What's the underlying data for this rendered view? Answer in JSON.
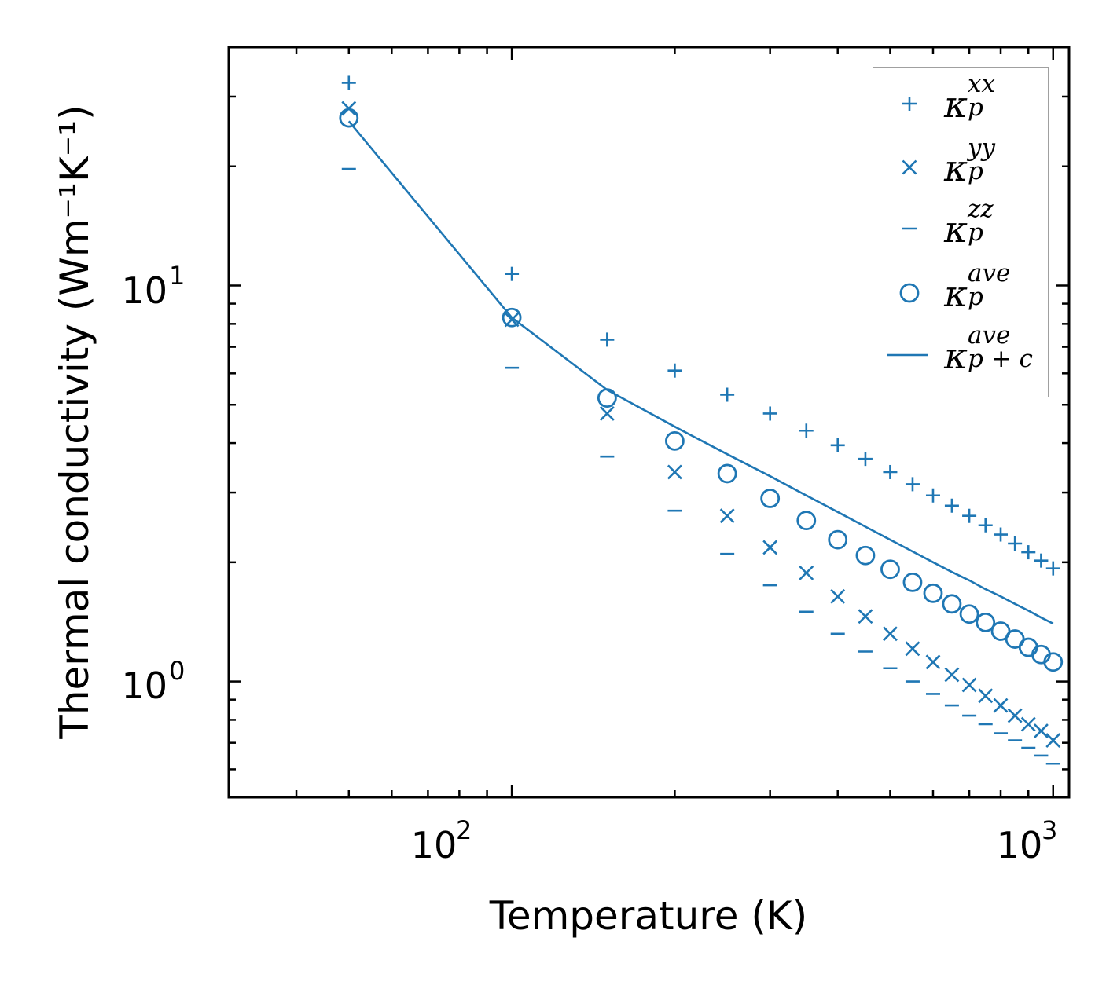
{
  "chart_data": {
    "type": "scatter",
    "title": "",
    "xlabel": "Temperature (K)",
    "ylabel": "Thermal conductivity (Wm⁻¹K⁻¹)",
    "xscale": "log",
    "yscale": "log",
    "xlim": [
      30,
      1070
    ],
    "ylim": [
      0.51,
      40
    ],
    "xticks": [
      {
        "value": 100,
        "base": "10",
        "exp": "2"
      },
      {
        "value": 1000,
        "base": "10",
        "exp": "3"
      }
    ],
    "yticks": [
      {
        "value": 1,
        "base": "10",
        "exp": "0"
      },
      {
        "value": 10,
        "base": "10",
        "exp": "1"
      }
    ],
    "color": "#1f77b4",
    "legend_position": "top-right",
    "x": [
      50,
      100,
      150,
      200,
      250,
      300,
      350,
      400,
      450,
      500,
      550,
      600,
      650,
      700,
      750,
      800,
      850,
      900,
      950,
      1000
    ],
    "series": [
      {
        "name": "kappa_p_xx",
        "marker": "plus",
        "base": "κ",
        "sup": "xx",
        "sub": "p",
        "values": [
          32.5,
          10.7,
          7.3,
          6.1,
          5.3,
          4.75,
          4.3,
          3.95,
          3.65,
          3.38,
          3.15,
          2.95,
          2.78,
          2.62,
          2.48,
          2.35,
          2.23,
          2.12,
          2.02,
          1.93
        ]
      },
      {
        "name": "kappa_p_yy",
        "marker": "x",
        "base": "κ",
        "sup": "yy",
        "sub": "p",
        "values": [
          28.0,
          8.2,
          4.75,
          3.38,
          2.62,
          2.18,
          1.88,
          1.64,
          1.46,
          1.32,
          1.21,
          1.12,
          1.04,
          0.98,
          0.92,
          0.87,
          0.82,
          0.78,
          0.75,
          0.71
        ]
      },
      {
        "name": "kappa_p_zz",
        "marker": "hline",
        "base": "κ",
        "sup": "zz",
        "sub": "p",
        "values": [
          19.7,
          6.2,
          3.7,
          2.7,
          2.1,
          1.75,
          1.5,
          1.32,
          1.19,
          1.08,
          1.0,
          0.93,
          0.87,
          0.82,
          0.78,
          0.74,
          0.71,
          0.68,
          0.65,
          0.62
        ]
      },
      {
        "name": "kappa_p_ave",
        "marker": "circle",
        "base": "κ",
        "sup": "ave",
        "sub": "p",
        "values": [
          26.5,
          8.3,
          5.2,
          4.05,
          3.35,
          2.9,
          2.55,
          2.28,
          2.08,
          1.92,
          1.78,
          1.67,
          1.57,
          1.48,
          1.41,
          1.34,
          1.28,
          1.22,
          1.17,
          1.12
        ]
      },
      {
        "name": "kappa_p+c_ave",
        "marker": "line",
        "base": "κ",
        "sup": "ave",
        "sub": "p + c",
        "values": [
          26.0,
          8.3,
          5.45,
          4.4,
          3.75,
          3.3,
          2.95,
          2.68,
          2.46,
          2.28,
          2.13,
          2.0,
          1.89,
          1.8,
          1.71,
          1.64,
          1.57,
          1.51,
          1.45,
          1.4
        ]
      }
    ]
  }
}
